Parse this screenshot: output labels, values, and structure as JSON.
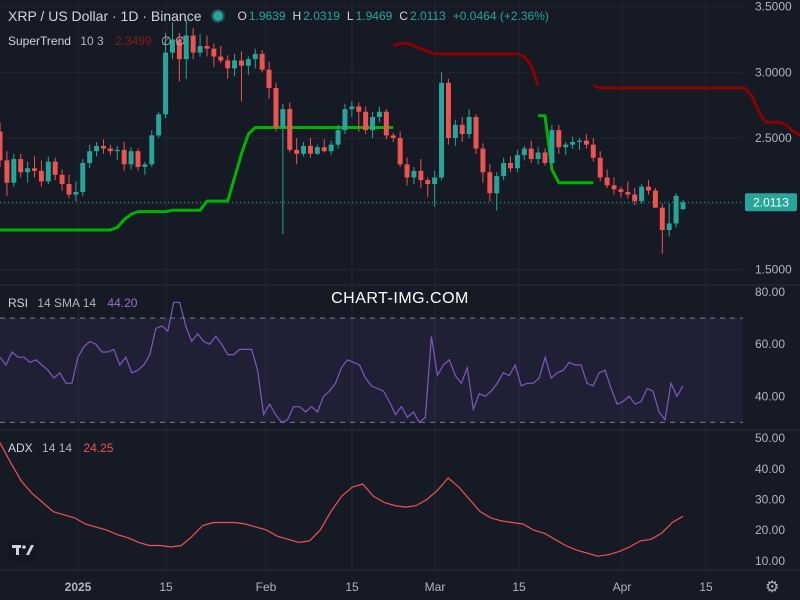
{
  "header": {
    "title": "XRP / US Dollar · 1D · Binance",
    "status_color": "#26a69a",
    "o_label": "O",
    "o_value": "1.9639",
    "h_label": "H",
    "h_value": "2.0319",
    "l_label": "L",
    "l_value": "1.9469",
    "c_label": "C",
    "c_value": "2.0113",
    "change": "+0.0464 (+2.36%)"
  },
  "indicators": {
    "supertrend": {
      "name": "SuperTrend",
      "params": "10 3",
      "value": "2.3499",
      "symbols": "∅ ∅"
    },
    "rsi": {
      "name": "RSI",
      "params": "14 SMA 14",
      "value": "44.20"
    },
    "adx": {
      "name": "ADX",
      "params": "14 14",
      "value": "24.25"
    }
  },
  "watermark": "CHART-IMG.COM",
  "price_badge": "2.0113",
  "chart_data": [
    {
      "type": "candlestick",
      "title": "XRP / US Dollar · 1D · Binance",
      "y_axis_ticks": [
        "3.5000",
        "3.0000",
        "2.5000",
        "2.0000",
        "1.5000"
      ],
      "x_axis_ticks": [
        "2025",
        "15",
        "Feb",
        "15",
        "Mar",
        "15",
        "Apr",
        "15"
      ],
      "ylim": [
        1.42,
        3.55
      ],
      "last_price": 2.0113,
      "candles": [
        [
          2.55,
          2.62,
          2.28,
          2.33
        ],
        [
          2.33,
          2.4,
          2.06,
          2.16
        ],
        [
          2.16,
          2.38,
          2.13,
          2.34
        ],
        [
          2.34,
          2.38,
          2.2,
          2.24
        ],
        [
          2.24,
          2.32,
          2.16,
          2.27
        ],
        [
          2.27,
          2.36,
          2.2,
          2.25
        ],
        [
          2.25,
          2.33,
          2.13,
          2.17
        ],
        [
          2.17,
          2.36,
          2.15,
          2.32
        ],
        [
          2.32,
          2.35,
          2.18,
          2.22
        ],
        [
          2.22,
          2.26,
          2.1,
          2.15
        ],
        [
          2.15,
          2.22,
          2.04,
          2.07
        ],
        [
          2.07,
          2.17,
          2.02,
          2.09
        ],
        [
          2.09,
          2.34,
          2.06,
          2.31
        ],
        [
          2.31,
          2.45,
          2.27,
          2.4
        ],
        [
          2.4,
          2.47,
          2.36,
          2.44
        ],
        [
          2.44,
          2.49,
          2.38,
          2.42
        ],
        [
          2.42,
          2.45,
          2.37,
          2.4
        ],
        [
          2.4,
          2.44,
          2.33,
          2.41
        ],
        [
          2.41,
          2.47,
          2.25,
          2.3
        ],
        [
          2.3,
          2.43,
          2.26,
          2.4
        ],
        [
          2.4,
          2.42,
          2.25,
          2.28
        ],
        [
          2.28,
          2.32,
          2.22,
          2.3
        ],
        [
          2.3,
          2.56,
          2.28,
          2.52
        ],
        [
          2.52,
          2.7,
          2.5,
          2.68
        ],
        [
          2.68,
          3.3,
          2.65,
          3.15
        ],
        [
          3.15,
          3.38,
          3.1,
          3.25
        ],
        [
          3.25,
          3.3,
          2.93,
          3.1
        ],
        [
          3.1,
          3.4,
          2.95,
          3.28
        ],
        [
          3.28,
          3.34,
          3.1,
          3.15
        ],
        [
          3.15,
          3.29,
          3.12,
          3.2
        ],
        [
          3.2,
          3.28,
          3.12,
          3.18
        ],
        [
          3.18,
          3.22,
          3.04,
          3.12
        ],
        [
          3.12,
          3.2,
          3.07,
          3.09
        ],
        [
          3.09,
          3.13,
          2.95,
          3.03
        ],
        [
          3.03,
          3.14,
          2.97,
          3.09
        ],
        [
          3.09,
          3.16,
          2.78,
          3.05
        ],
        [
          3.05,
          3.12,
          2.98,
          3.1
        ],
        [
          3.1,
          3.18,
          3.03,
          3.14
        ],
        [
          3.14,
          3.17,
          3.0,
          3.02
        ],
        [
          3.02,
          3.08,
          2.8,
          2.88
        ],
        [
          2.88,
          2.92,
          2.55,
          2.58
        ],
        [
          2.58,
          2.76,
          1.77,
          2.72
        ],
        [
          2.72,
          2.77,
          2.39,
          2.41
        ],
        [
          2.41,
          2.5,
          2.3,
          2.38
        ],
        [
          2.38,
          2.47,
          2.36,
          2.44
        ],
        [
          2.44,
          2.5,
          2.35,
          2.38
        ],
        [
          2.38,
          2.45,
          2.37,
          2.43
        ],
        [
          2.43,
          2.49,
          2.39,
          2.4
        ],
        [
          2.4,
          2.48,
          2.37,
          2.45
        ],
        [
          2.45,
          2.6,
          2.42,
          2.56
        ],
        [
          2.56,
          2.76,
          2.53,
          2.72
        ],
        [
          2.72,
          2.78,
          2.66,
          2.74
        ],
        [
          2.74,
          2.77,
          2.55,
          2.7
        ],
        [
          2.7,
          2.74,
          2.53,
          2.56
        ],
        [
          2.56,
          2.7,
          2.5,
          2.66
        ],
        [
          2.66,
          2.74,
          2.62,
          2.7
        ],
        [
          2.7,
          2.72,
          2.49,
          2.52
        ],
        [
          2.52,
          2.54,
          2.47,
          2.5
        ],
        [
          2.5,
          2.55,
          2.28,
          2.3
        ],
        [
          2.3,
          2.35,
          2.14,
          2.2
        ],
        [
          2.2,
          2.28,
          2.15,
          2.25
        ],
        [
          2.25,
          2.34,
          2.12,
          2.18
        ],
        [
          2.18,
          2.2,
          2.05,
          2.15
        ],
        [
          2.15,
          2.25,
          1.98,
          2.2
        ],
        [
          2.2,
          3.0,
          2.18,
          2.92
        ],
        [
          2.92,
          2.95,
          2.45,
          2.5
        ],
        [
          2.5,
          2.64,
          2.44,
          2.6
        ],
        [
          2.6,
          2.66,
          2.47,
          2.53
        ],
        [
          2.53,
          2.72,
          2.5,
          2.66
        ],
        [
          2.66,
          2.68,
          2.38,
          2.42
        ],
        [
          2.42,
          2.46,
          2.16,
          2.24
        ],
        [
          2.24,
          2.3,
          2.02,
          2.08
        ],
        [
          2.08,
          2.24,
          1.95,
          2.21
        ],
        [
          2.21,
          2.35,
          2.18,
          2.31
        ],
        [
          2.31,
          2.36,
          2.24,
          2.27
        ],
        [
          2.27,
          2.41,
          2.24,
          2.37
        ],
        [
          2.37,
          2.44,
          2.33,
          2.42
        ],
        [
          2.42,
          2.48,
          2.31,
          2.34
        ],
        [
          2.34,
          2.43,
          2.3,
          2.39
        ],
        [
          2.39,
          2.42,
          2.29,
          2.31
        ],
        [
          2.31,
          2.6,
          2.29,
          2.56
        ],
        [
          2.56,
          2.6,
          2.38,
          2.43
        ],
        [
          2.43,
          2.47,
          2.37,
          2.45
        ],
        [
          2.45,
          2.51,
          2.42,
          2.47
        ],
        [
          2.47,
          2.5,
          2.41,
          2.48
        ],
        [
          2.48,
          2.53,
          2.42,
          2.45
        ],
        [
          2.45,
          2.5,
          2.32,
          2.35
        ],
        [
          2.35,
          2.4,
          2.17,
          2.2
        ],
        [
          2.2,
          2.26,
          2.12,
          2.14
        ],
        [
          2.14,
          2.2,
          2.07,
          2.11
        ],
        [
          2.11,
          2.13,
          2.05,
          2.09
        ],
        [
          2.09,
          2.17,
          2.04,
          2.07
        ],
        [
          2.07,
          2.12,
          1.99,
          2.02
        ],
        [
          2.02,
          2.15,
          2.0,
          2.13
        ],
        [
          2.13,
          2.18,
          2.07,
          2.1
        ],
        [
          2.1,
          2.12,
          1.98,
          1.97
        ],
        [
          1.97,
          2.0,
          1.62,
          1.8
        ],
        [
          1.8,
          2.0,
          1.75,
          1.85
        ],
        [
          1.85,
          2.08,
          1.82,
          2.06
        ],
        [
          1.96,
          2.03,
          1.95,
          2.01
        ]
      ]
    },
    {
      "type": "line",
      "name": "SuperTrend",
      "params": "10 3",
      "up_color": "#00b300",
      "down_color": "#8b0000",
      "series": [
        {
          "role": "up",
          "segment": [
            1.8,
            1.8,
            1.8,
            1.8,
            1.8,
            1.8,
            1.8,
            1.8,
            1.8,
            1.8,
            1.8,
            1.8,
            1.8,
            1.8,
            1.8,
            1.8,
            1.8,
            1.82,
            1.88,
            1.92,
            1.94,
            1.94,
            1.94,
            1.94,
            1.94,
            1.95,
            1.95,
            1.95,
            1.95,
            1.95,
            2.02,
            2.02,
            2.02,
            2.02,
            2.2,
            2.38,
            2.53,
            2.58,
            2.58,
            2.58,
            2.58,
            2.58,
            2.58,
            2.58,
            2.58,
            2.58,
            2.58,
            2.58,
            2.58,
            2.58,
            2.58,
            2.58,
            2.58,
            2.58,
            2.58,
            2.58,
            2.58,
            2.58
          ]
        },
        {
          "role": "down",
          "segment": [
            3.2,
            3.22,
            3.22,
            3.2,
            3.18,
            3.16,
            3.14,
            3.14,
            3.14,
            3.14,
            3.14,
            3.14,
            3.14,
            3.14,
            3.14,
            3.14,
            3.14,
            3.14,
            3.14,
            3.12,
            3.05,
            2.9
          ]
        },
        {
          "role": "up",
          "segment": [
            2.67,
            2.67,
            2.26,
            2.16,
            2.16,
            2.16,
            2.16,
            2.16,
            2.16
          ]
        },
        {
          "role": "down",
          "segment": [
            2.9,
            2.88,
            2.88,
            2.88,
            2.88,
            2.88,
            2.88,
            2.88,
            2.88,
            2.88,
            2.88,
            2.88,
            2.88,
            2.88,
            2.88,
            2.88,
            2.88,
            2.88,
            2.88,
            2.88,
            2.88,
            2.88,
            2.88,
            2.82,
            2.7,
            2.62,
            2.62,
            2.62,
            2.6,
            2.55,
            2.52,
            2.47,
            2.42,
            2.37,
            2.37,
            2.37,
            2.37
          ]
        }
      ]
    },
    {
      "type": "line",
      "name": "RSI",
      "params": "14 SMA 14",
      "y_axis_ticks": [
        "80.00",
        "60.00",
        "40.00"
      ],
      "ylim": [
        29,
        80
      ],
      "bands": [
        70,
        30
      ],
      "values": [
        55,
        52,
        57,
        55,
        55,
        53,
        54,
        52,
        50,
        47,
        49,
        45,
        45,
        55,
        59,
        61,
        60,
        57,
        57,
        58,
        52,
        55,
        49,
        50,
        52,
        56,
        66,
        67,
        65,
        76,
        76,
        67,
        61,
        64,
        61,
        60,
        63,
        60,
        56,
        56,
        58,
        58,
        58,
        50,
        33,
        37,
        33,
        30,
        31,
        36,
        36,
        34,
        36,
        34,
        40,
        42,
        45,
        51,
        54,
        53,
        52,
        47,
        44,
        43,
        42,
        38,
        33,
        36,
        32,
        34,
        30,
        32,
        63,
        48,
        52,
        54,
        48,
        45,
        51,
        35,
        41,
        40,
        42,
        45,
        49,
        48,
        52,
        44,
        45,
        45,
        47,
        55,
        47,
        49,
        50,
        53,
        52,
        52,
        45,
        44,
        49,
        50,
        43,
        37,
        38,
        40,
        37,
        38,
        43,
        42,
        34,
        31,
        45,
        40,
        44
      ]
    },
    {
      "type": "line",
      "name": "ADX",
      "params": "14 14",
      "y_axis_ticks": [
        "50.00",
        "40.00",
        "30.00",
        "20.00",
        "10.00"
      ],
      "ylim": [
        7,
        52
      ],
      "values": [
        48.5,
        42,
        36,
        32,
        29,
        26,
        25,
        24,
        22,
        21,
        20,
        18.5,
        17.5,
        16,
        15,
        15,
        14.5,
        15,
        18,
        21.5,
        22.5,
        22.5,
        22.5,
        22,
        21,
        20,
        18,
        17,
        16,
        16.5,
        20,
        26,
        31,
        34,
        35,
        31,
        29,
        28,
        27.5,
        28,
        30,
        33,
        37,
        34,
        30,
        26,
        24,
        23,
        22.5,
        22,
        20,
        19,
        17,
        15,
        13.5,
        12.5,
        11.5,
        12,
        13,
        14.5,
        16.5,
        17,
        19,
        22.5,
        24.5
      ]
    }
  ]
}
